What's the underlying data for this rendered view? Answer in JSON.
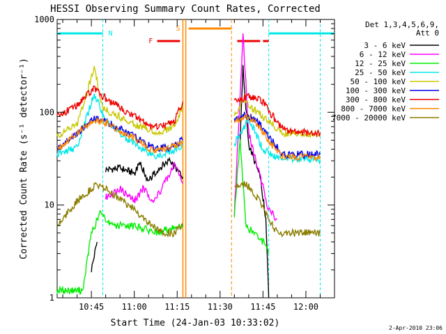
{
  "chart_data": {
    "type": "line",
    "title": "HESSI Observing Summary Count Rates, Corrected",
    "xlabel": "Start Time (24-Jan-03 10:33:02)",
    "ylabel": "Corrected Count Rate (s⁻¹ detector⁻¹)",
    "yscale": "log",
    "ylim": [
      1,
      1000
    ],
    "xlim": [
      "10:33:02",
      "12:10:00"
    ],
    "grid": false,
    "legend_position": "right",
    "legend_header": [
      "Det 1,3,4,5,6,9,",
      "Att 0"
    ],
    "date_stamp": "2-Apr-2010 23:06",
    "x_ticks": [
      "10:45",
      "11:00",
      "11:15",
      "11:30",
      "11:45",
      "12:00"
    ],
    "y_ticks": [
      "1",
      "10",
      "100",
      "1000"
    ],
    "markers": [
      {
        "label": "N",
        "color": "#00e8e8"
      },
      {
        "label": "S",
        "color": "#ff8800"
      },
      {
        "label": "F",
        "color": "#ee0000"
      }
    ],
    "series": [
      {
        "name": "3 - 6 keV",
        "color": "#000000",
        "points": [
          [
            "10:45",
            2
          ],
          [
            "10:47",
            4
          ],
          [
            "10:49",
            null
          ],
          [
            "10:50",
            24
          ],
          [
            "10:55",
            25
          ],
          [
            "11:00",
            22
          ],
          [
            "11:02",
            28
          ],
          [
            "11:05",
            18
          ],
          [
            "11:08",
            24
          ],
          [
            "11:12",
            30
          ],
          [
            "11:15",
            24
          ],
          [
            "11:17",
            20
          ],
          [
            "11:34",
            null
          ],
          [
            "11:37",
            50
          ],
          [
            "11:38",
            300
          ],
          [
            "11:40",
            45
          ],
          [
            "11:44",
            20
          ],
          [
            "11:46",
            7
          ],
          [
            "11:47",
            1
          ]
        ]
      },
      {
        "name": "6 - 12 keV",
        "color": "#ff00ff",
        "points": [
          [
            "10:44",
            null
          ],
          [
            "10:46",
            9
          ],
          [
            "10:49",
            null
          ],
          [
            "10:50",
            12
          ],
          [
            "10:55",
            15
          ],
          [
            "11:00",
            11
          ],
          [
            "11:03",
            15
          ],
          [
            "11:07",
            11
          ],
          [
            "11:10",
            16
          ],
          [
            "11:14",
            28
          ],
          [
            "11:17",
            17
          ],
          [
            "11:34",
            null
          ],
          [
            "11:35",
            8
          ],
          [
            "11:38",
            700
          ],
          [
            "11:40",
            60
          ],
          [
            "11:44",
            20
          ],
          [
            "11:47",
            9
          ],
          [
            "11:50",
            7
          ]
        ]
      },
      {
        "name": "12 - 25 keV",
        "color": "#00ee00",
        "points": [
          [
            "10:33",
            1.2
          ],
          [
            "10:42",
            1.2
          ],
          [
            "10:45",
            5
          ],
          [
            "10:48",
            8
          ],
          [
            "10:52",
            6
          ],
          [
            "11:00",
            6
          ],
          [
            "11:08",
            5
          ],
          [
            "11:15",
            6
          ],
          [
            "11:17",
            6
          ],
          [
            "11:34",
            null
          ],
          [
            "11:35",
            8
          ],
          [
            "11:37",
            50
          ],
          [
            "11:39",
            6
          ],
          [
            "11:45",
            4
          ],
          [
            "11:47",
            3
          ]
        ]
      },
      {
        "name": "25 - 50 keV",
        "color": "#00e8e8",
        "points": [
          [
            "10:33",
            35
          ],
          [
            "10:40",
            42
          ],
          [
            "10:46",
            160
          ],
          [
            "10:50",
            80
          ],
          [
            "11:00",
            45
          ],
          [
            "11:08",
            33
          ],
          [
            "11:13",
            38
          ],
          [
            "11:17",
            45
          ],
          [
            "11:34",
            null
          ],
          [
            "11:35",
            45
          ],
          [
            "11:40",
            85
          ],
          [
            "11:45",
            40
          ],
          [
            "11:50",
            32
          ],
          [
            "12:05",
            31
          ]
        ]
      },
      {
        "name": "50 - 100 keV",
        "color": "#c8c800",
        "points": [
          [
            "10:33",
            55
          ],
          [
            "10:40",
            75
          ],
          [
            "10:46",
            300
          ],
          [
            "10:49",
            110
          ],
          [
            "11:00",
            75
          ],
          [
            "11:08",
            60
          ],
          [
            "11:14",
            70
          ],
          [
            "11:17",
            120
          ],
          [
            "11:34",
            null
          ],
          [
            "11:35",
            90
          ],
          [
            "11:38",
            140
          ],
          [
            "11:43",
            100
          ],
          [
            "11:47",
            80
          ],
          [
            "11:52",
            60
          ],
          [
            "12:05",
            58
          ]
        ]
      },
      {
        "name": "100 - 300 keV",
        "color": "#0000ee",
        "points": [
          [
            "10:33",
            40
          ],
          [
            "10:40",
            60
          ],
          [
            "10:46",
            85
          ],
          [
            "10:50",
            80
          ],
          [
            "11:00",
            55
          ],
          [
            "11:07",
            40
          ],
          [
            "11:13",
            42
          ],
          [
            "11:17",
            50
          ],
          [
            "11:34",
            null
          ],
          [
            "11:35",
            82
          ],
          [
            "11:39",
            95
          ],
          [
            "11:43",
            80
          ],
          [
            "11:48",
            50
          ],
          [
            "11:52",
            35
          ],
          [
            "12:05",
            35
          ]
        ]
      },
      {
        "name": "300 - 800 keV",
        "color": "#ee0000",
        "points": [
          [
            "10:33",
            90
          ],
          [
            "10:40",
            120
          ],
          [
            "10:46",
            180
          ],
          [
            "10:50",
            140
          ],
          [
            "11:00",
            90
          ],
          [
            "11:06",
            70
          ],
          [
            "11:10",
            72
          ],
          [
            "11:14",
            80
          ],
          [
            "11:17",
            130
          ],
          [
            "11:34",
            null
          ],
          [
            "11:35",
            130
          ],
          [
            "11:40",
            150
          ],
          [
            "11:45",
            130
          ],
          [
            "11:49",
            85
          ],
          [
            "11:53",
            62
          ],
          [
            "12:05",
            60
          ]
        ]
      },
      {
        "name": "800 - 7000 keV",
        "color": "#ff8800",
        "points": [
          [
            "10:33",
            40
          ],
          [
            "10:40",
            60
          ],
          [
            "10:46",
            82
          ],
          [
            "10:50",
            78
          ],
          [
            "11:00",
            52
          ],
          [
            "11:07",
            38
          ],
          [
            "11:13",
            42
          ],
          [
            "11:17",
            48
          ],
          [
            "11:34",
            null
          ],
          [
            "11:35",
            80
          ],
          [
            "11:39",
            92
          ],
          [
            "11:43",
            75
          ],
          [
            "11:48",
            45
          ],
          [
            "11:52",
            33
          ],
          [
            "12:05",
            33
          ]
        ]
      },
      {
        "name": "7000 - 20000 keV",
        "color": "#8a7d00",
        "points": [
          [
            "10:33",
            6
          ],
          [
            "10:40",
            11
          ],
          [
            "10:46",
            16
          ],
          [
            "10:50",
            15
          ],
          [
            "11:00",
            9
          ],
          [
            "11:06",
            6
          ],
          [
            "11:10",
            5
          ],
          [
            "11:14",
            5
          ],
          [
            "11:17",
            6
          ],
          [
            "11:34",
            null
          ],
          [
            "11:35",
            16
          ],
          [
            "11:39",
            17
          ],
          [
            "11:43",
            12
          ],
          [
            "11:46",
            8
          ],
          [
            "11:50",
            5
          ],
          [
            "12:05",
            5
          ]
        ]
      }
    ]
  }
}
